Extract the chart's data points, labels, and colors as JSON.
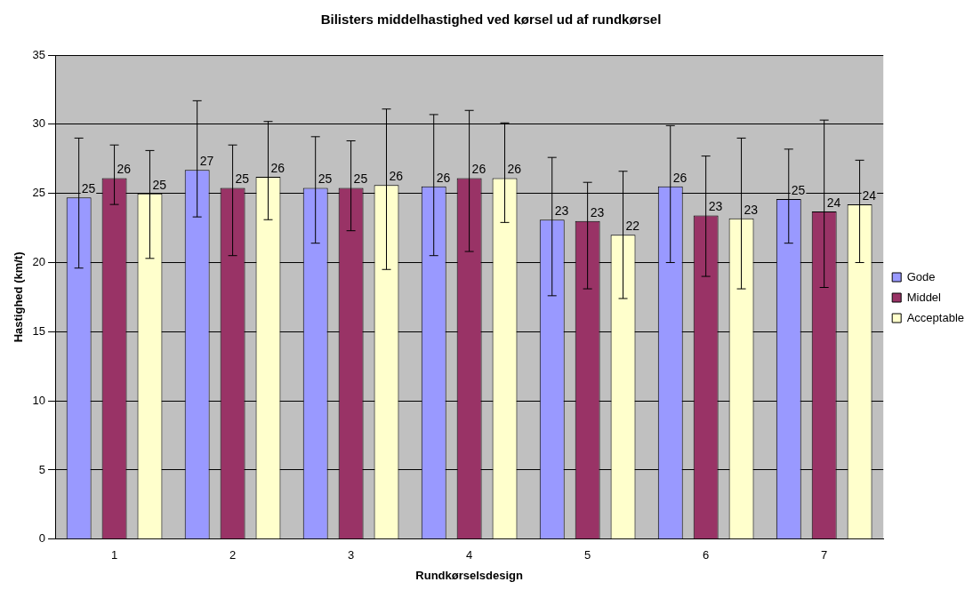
{
  "chart_data": {
    "type": "bar",
    "title": "Bilisters middelhastighed ved kørsel ud af rundkørsel",
    "xlabel": "Rundkørselsdesign",
    "ylabel": "Hastighed (km/t)",
    "categories": [
      "1",
      "2",
      "3",
      "4",
      "5",
      "6",
      "7"
    ],
    "series": [
      {
        "name": "Gode",
        "color": "#9999ff",
        "values": [
          24.7,
          26.7,
          25.4,
          25.5,
          23.1,
          25.5,
          24.6
        ],
        "errors": [
          [
            19.6,
            29.0
          ],
          [
            23.3,
            31.7
          ],
          [
            21.4,
            29.1
          ],
          [
            20.5,
            30.7
          ],
          [
            17.6,
            27.6
          ],
          [
            20.0,
            29.9
          ],
          [
            21.4,
            28.2
          ]
        ],
        "value_labels": [
          "25",
          "27",
          "25",
          "26",
          "23",
          "26",
          "25"
        ]
      },
      {
        "name": "Middel",
        "color": "#993366",
        "values": [
          26.1,
          25.4,
          25.4,
          26.1,
          23.0,
          23.4,
          23.7
        ],
        "errors": [
          [
            24.2,
            28.5
          ],
          [
            20.5,
            28.5
          ],
          [
            22.3,
            28.8
          ],
          [
            20.8,
            31.0
          ],
          [
            18.1,
            25.8
          ],
          [
            19.0,
            27.7
          ],
          [
            18.2,
            30.3
          ]
        ],
        "value_labels": [
          "26",
          "25",
          "25",
          "26",
          "23",
          "23",
          "24"
        ]
      },
      {
        "name": "Acceptable",
        "color": "#ffffcc",
        "values": [
          25.0,
          26.2,
          25.6,
          26.1,
          22.0,
          23.2,
          24.2
        ],
        "errors": [
          [
            20.3,
            28.1
          ],
          [
            23.1,
            30.2
          ],
          [
            19.5,
            31.1
          ],
          [
            22.9,
            30.1
          ],
          [
            17.4,
            26.6
          ],
          [
            18.1,
            29.0
          ],
          [
            20.0,
            27.4
          ]
        ],
        "value_labels": [
          "25",
          "26",
          "26",
          "26",
          "22",
          "23",
          "24"
        ]
      }
    ],
    "ylim": [
      0,
      35
    ],
    "yticks": [
      0,
      5,
      10,
      15,
      20,
      25,
      30,
      35
    ],
    "grid": "y",
    "legend": "right"
  }
}
